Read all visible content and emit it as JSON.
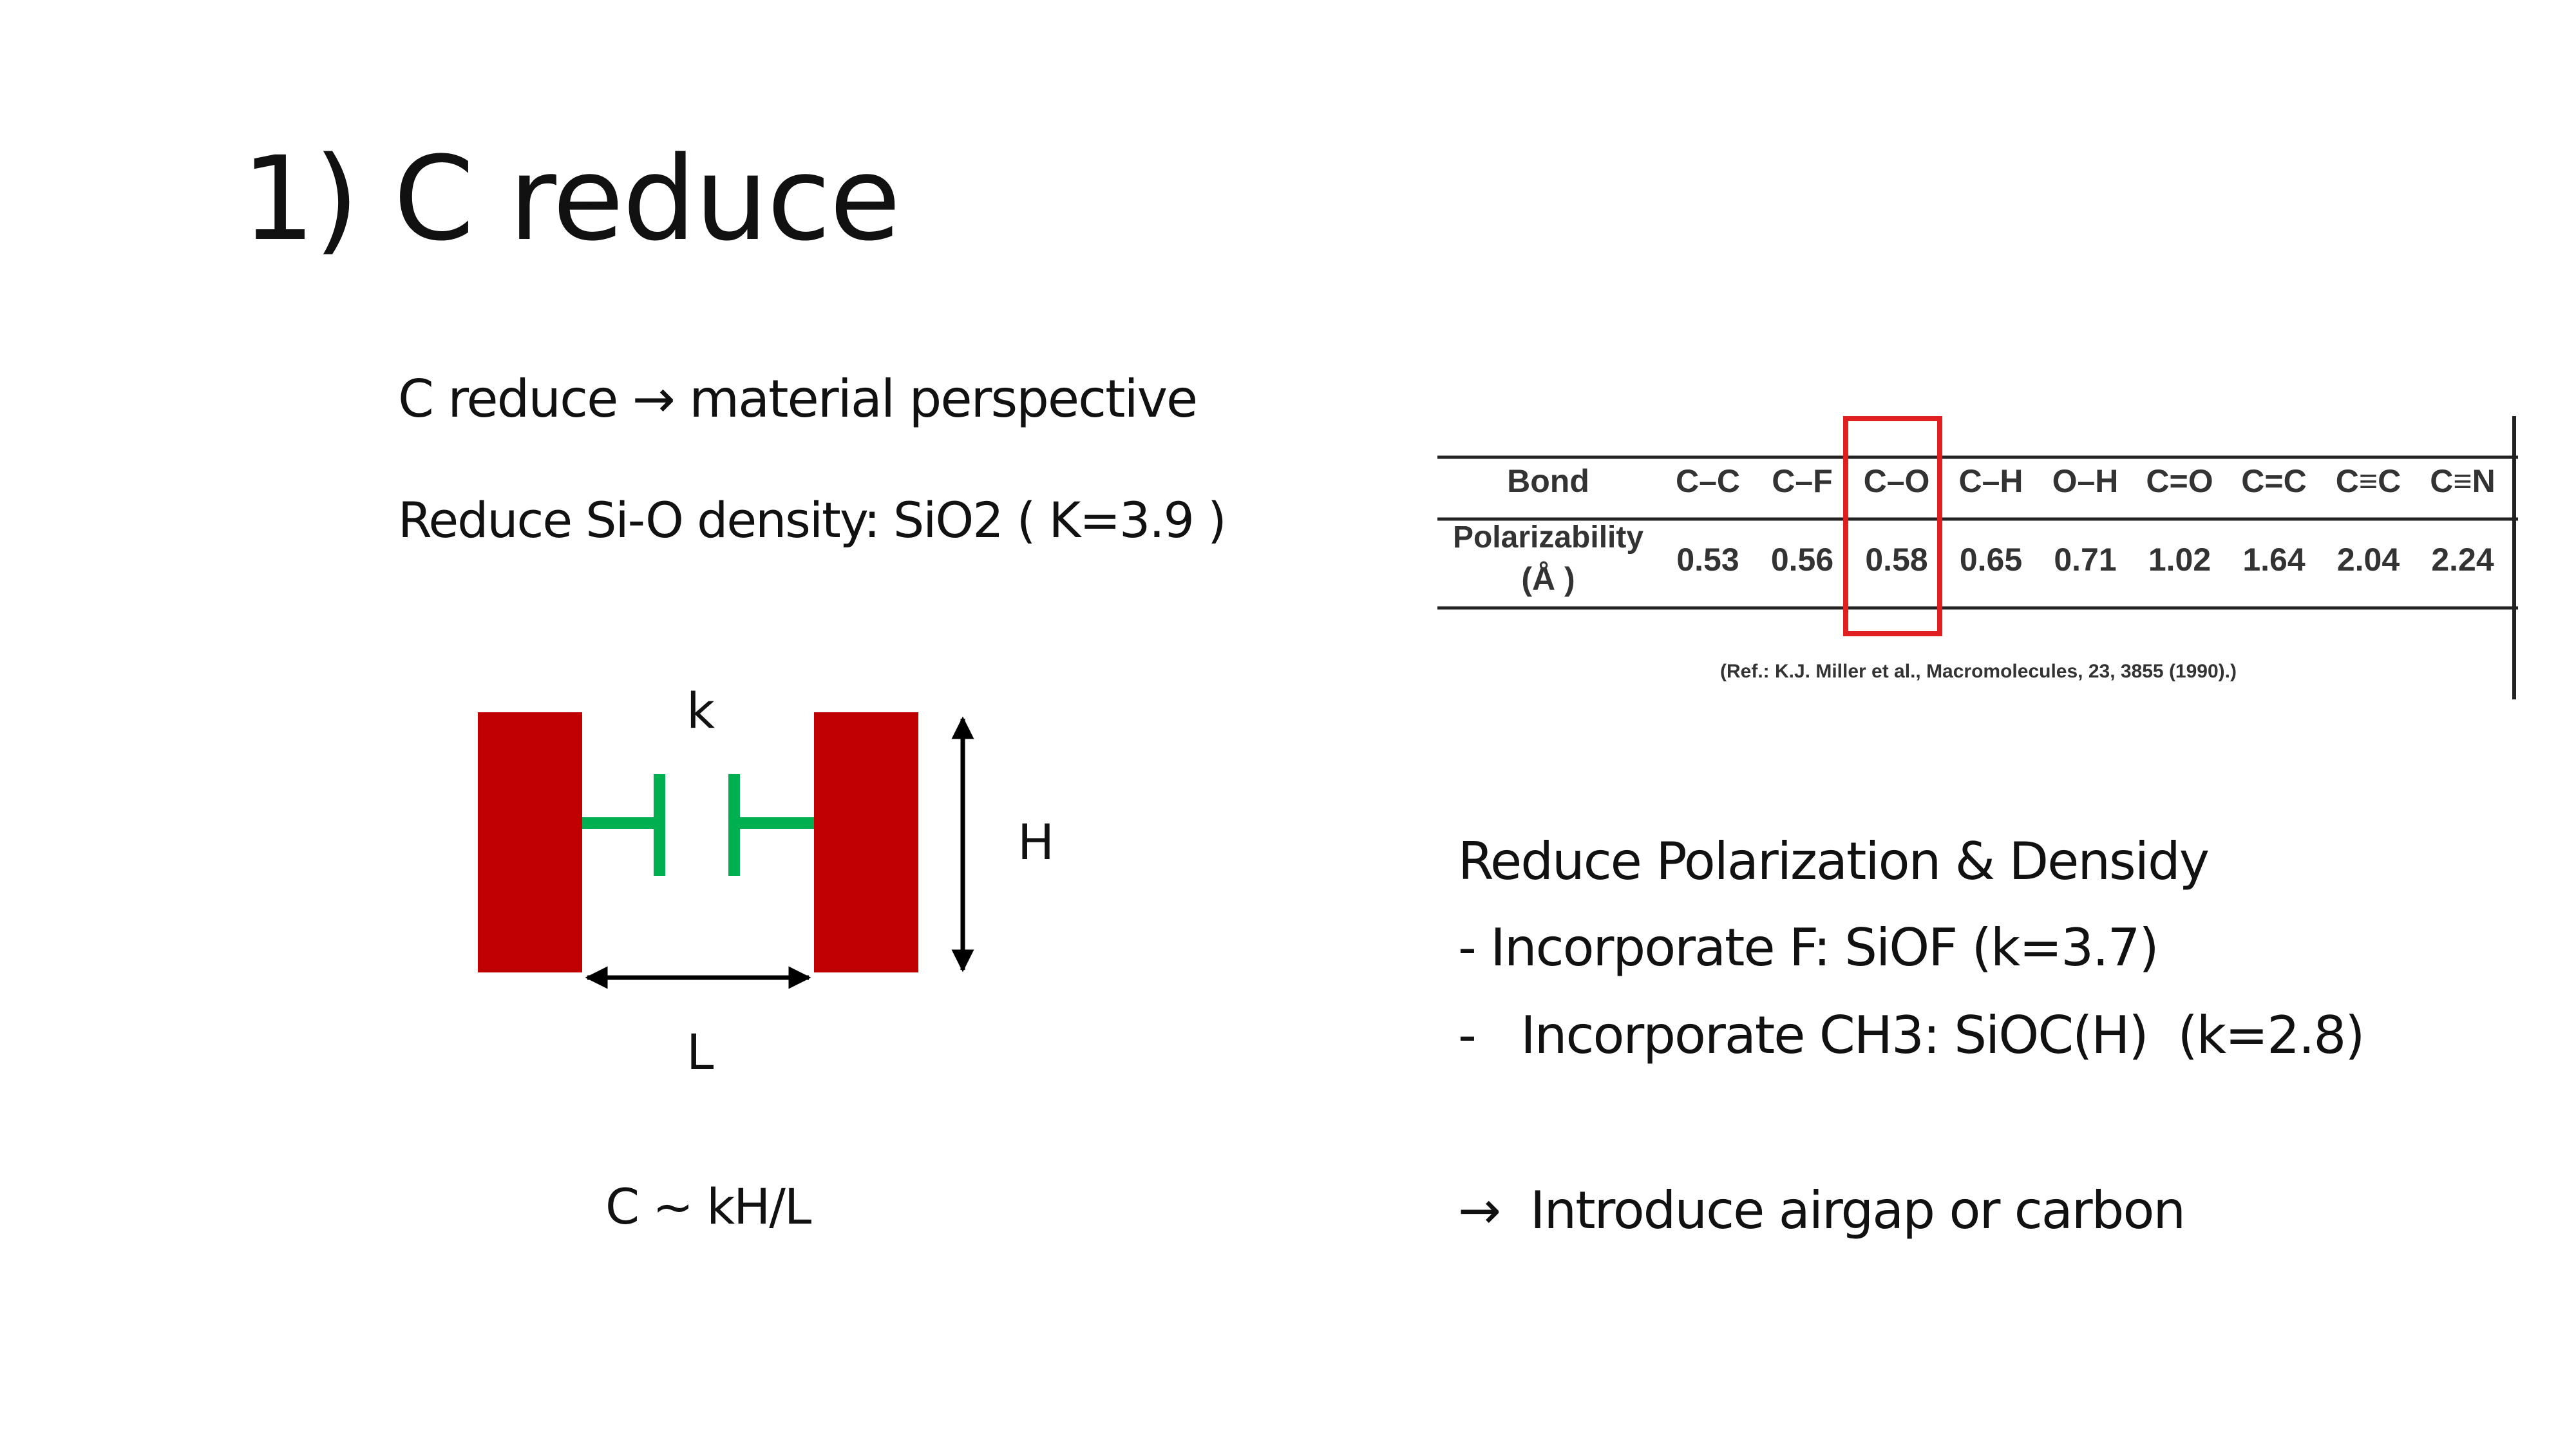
{
  "slide": {
    "title": "1) C reduce"
  },
  "left": {
    "line1": "C reduce → material perspective",
    "line2": "Reduce Si-O density: SiO2 ( K=3.9 )",
    "formula": "C ~ kH/L",
    "diagram": {
      "label_k": "k",
      "label_h": "H",
      "label_l": "L",
      "plate_color": "#c00000",
      "field_color": "#00b050"
    }
  },
  "table": {
    "header_label": "Bond",
    "row_label_1": "Polarizability",
    "row_label_2": "(Å )",
    "columns": [
      {
        "bond": "C–C",
        "value": "0.53"
      },
      {
        "bond": "C–F",
        "value": "0.56"
      },
      {
        "bond": "C–O",
        "value": "0.58"
      },
      {
        "bond": "C–H",
        "value": "0.65"
      },
      {
        "bond": "O–H",
        "value": "0.71"
      },
      {
        "bond": "C=O",
        "value": "1.02"
      },
      {
        "bond": "C=C",
        "value": "1.64"
      },
      {
        "bond": "C≡C",
        "value": "2.04"
      },
      {
        "bond": "C≡N",
        "value": "2.24"
      }
    ],
    "highlight_color": "#e02020",
    "reference": "(Ref.: K.J. Miller et al., Macromolecules, 23, 3855 (1990).)"
  },
  "right": {
    "heading": "Reduce Polarization & Densidy",
    "bullet1": "- Incorporate F: SiOF (k=3.7)",
    "bullet2": "-   Incorporate CH3: SiOC(H)  (k=2.8)",
    "conclusion": "→  Introduce airgap or carbon"
  }
}
